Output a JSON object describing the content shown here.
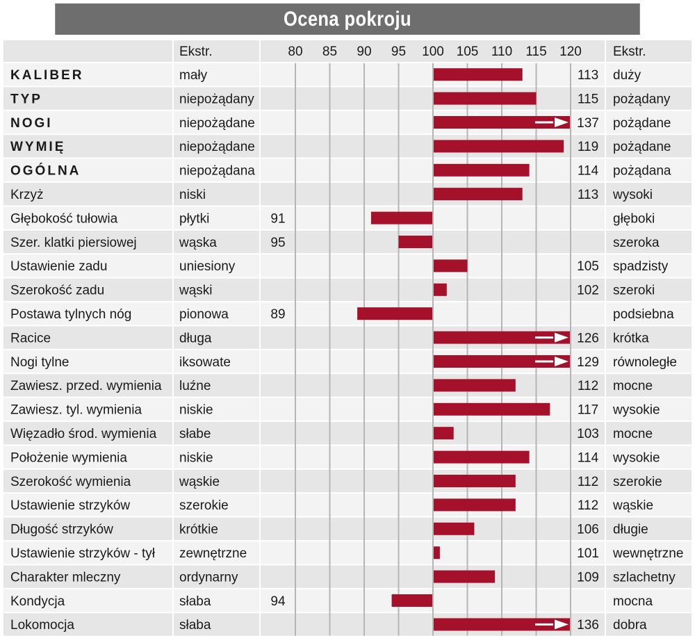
{
  "title": "Ocena pokroju",
  "header": {
    "left_extreme": "Ekstr.",
    "right_extreme": "Ekstr."
  },
  "colors": {
    "bar": "#a5102b",
    "header_bg": "#6e6e6e",
    "row_alt": "#e6e6e6",
    "row": "#f3f3f3",
    "grid": "#b5b5b5"
  },
  "chart_data": {
    "type": "bar",
    "orientation": "horizontal",
    "baseline": 100,
    "xlim": [
      76,
      121
    ],
    "ticks": [
      80,
      85,
      90,
      95,
      100,
      105,
      110,
      115,
      120
    ],
    "rows": [
      {
        "trait": "KALIBER",
        "bold": true,
        "low": "mały",
        "high": "duży",
        "value": 113
      },
      {
        "trait": "TYP",
        "bold": true,
        "low": "niepożądany",
        "high": "pożądany",
        "value": 115
      },
      {
        "trait": "NOGI",
        "bold": true,
        "low": "niepożądane",
        "high": "pożądane",
        "value": 137
      },
      {
        "trait": "WYMIĘ",
        "bold": true,
        "low": "niepożądane",
        "high": "pożądane",
        "value": 119
      },
      {
        "trait": "OGÓLNA",
        "bold": true,
        "low": "niepożądana",
        "high": "pożądana",
        "value": 114
      },
      {
        "trait": "Krzyż",
        "bold": false,
        "low": "niski",
        "high": "wysoki",
        "value": 113
      },
      {
        "trait": "Głębokość tułowia",
        "bold": false,
        "low": "płytki",
        "high": "głęboki",
        "value": 91
      },
      {
        "trait": "Szer. klatki piersiowej",
        "bold": false,
        "low": "wąska",
        "high": "szeroka",
        "value": 95
      },
      {
        "trait": "Ustawienie zadu",
        "bold": false,
        "low": "uniesiony",
        "high": "spadzisty",
        "value": 105
      },
      {
        "trait": "Szerokość zadu",
        "bold": false,
        "low": "wąski",
        "high": "szeroki",
        "value": 102
      },
      {
        "trait": "Postawa tylnych nóg",
        "bold": false,
        "low": "pionowa",
        "high": "podsiebna",
        "value": 89
      },
      {
        "trait": "Racice",
        "bold": false,
        "low": "długa",
        "high": "krótka",
        "value": 126
      },
      {
        "trait": "Nogi tylne",
        "bold": false,
        "low": "iksowate",
        "high": "równoległe",
        "value": 129
      },
      {
        "trait": "Zawiesz. przed. wymienia",
        "bold": false,
        "low": "luźne",
        "high": "mocne",
        "value": 112
      },
      {
        "trait": "Zawiesz. tyl. wymienia",
        "bold": false,
        "low": "niskie",
        "high": "wysokie",
        "value": 117
      },
      {
        "trait": "Więzadło środ. wymienia",
        "bold": false,
        "low": "słabe",
        "high": "mocne",
        "value": 103
      },
      {
        "trait": "Położenie wymienia",
        "bold": false,
        "low": "niskie",
        "high": "wysokie",
        "value": 114
      },
      {
        "trait": "Szerokość wymienia",
        "bold": false,
        "low": "wąskie",
        "high": "szerokie",
        "value": 112
      },
      {
        "trait": "Ustawienie strzyków",
        "bold": false,
        "low": "szerokie",
        "high": "wąskie",
        "value": 112
      },
      {
        "trait": "Długość strzyków",
        "bold": false,
        "low": "krótkie",
        "high": "długie",
        "value": 106
      },
      {
        "trait": "Ustawienie strzyków - tył",
        "bold": false,
        "low": "zewnętrzne",
        "high": "wewnętrzne",
        "value": 101
      },
      {
        "trait": "Charakter mleczny",
        "bold": false,
        "low": "ordynarny",
        "high": "szlachetny",
        "value": 109
      },
      {
        "trait": "Kondycja",
        "bold": false,
        "low": "słaba",
        "high": "mocna",
        "value": 94
      },
      {
        "trait": "Lokomocja",
        "bold": false,
        "low": "słaba",
        "high": "dobra",
        "value": 136
      }
    ]
  }
}
